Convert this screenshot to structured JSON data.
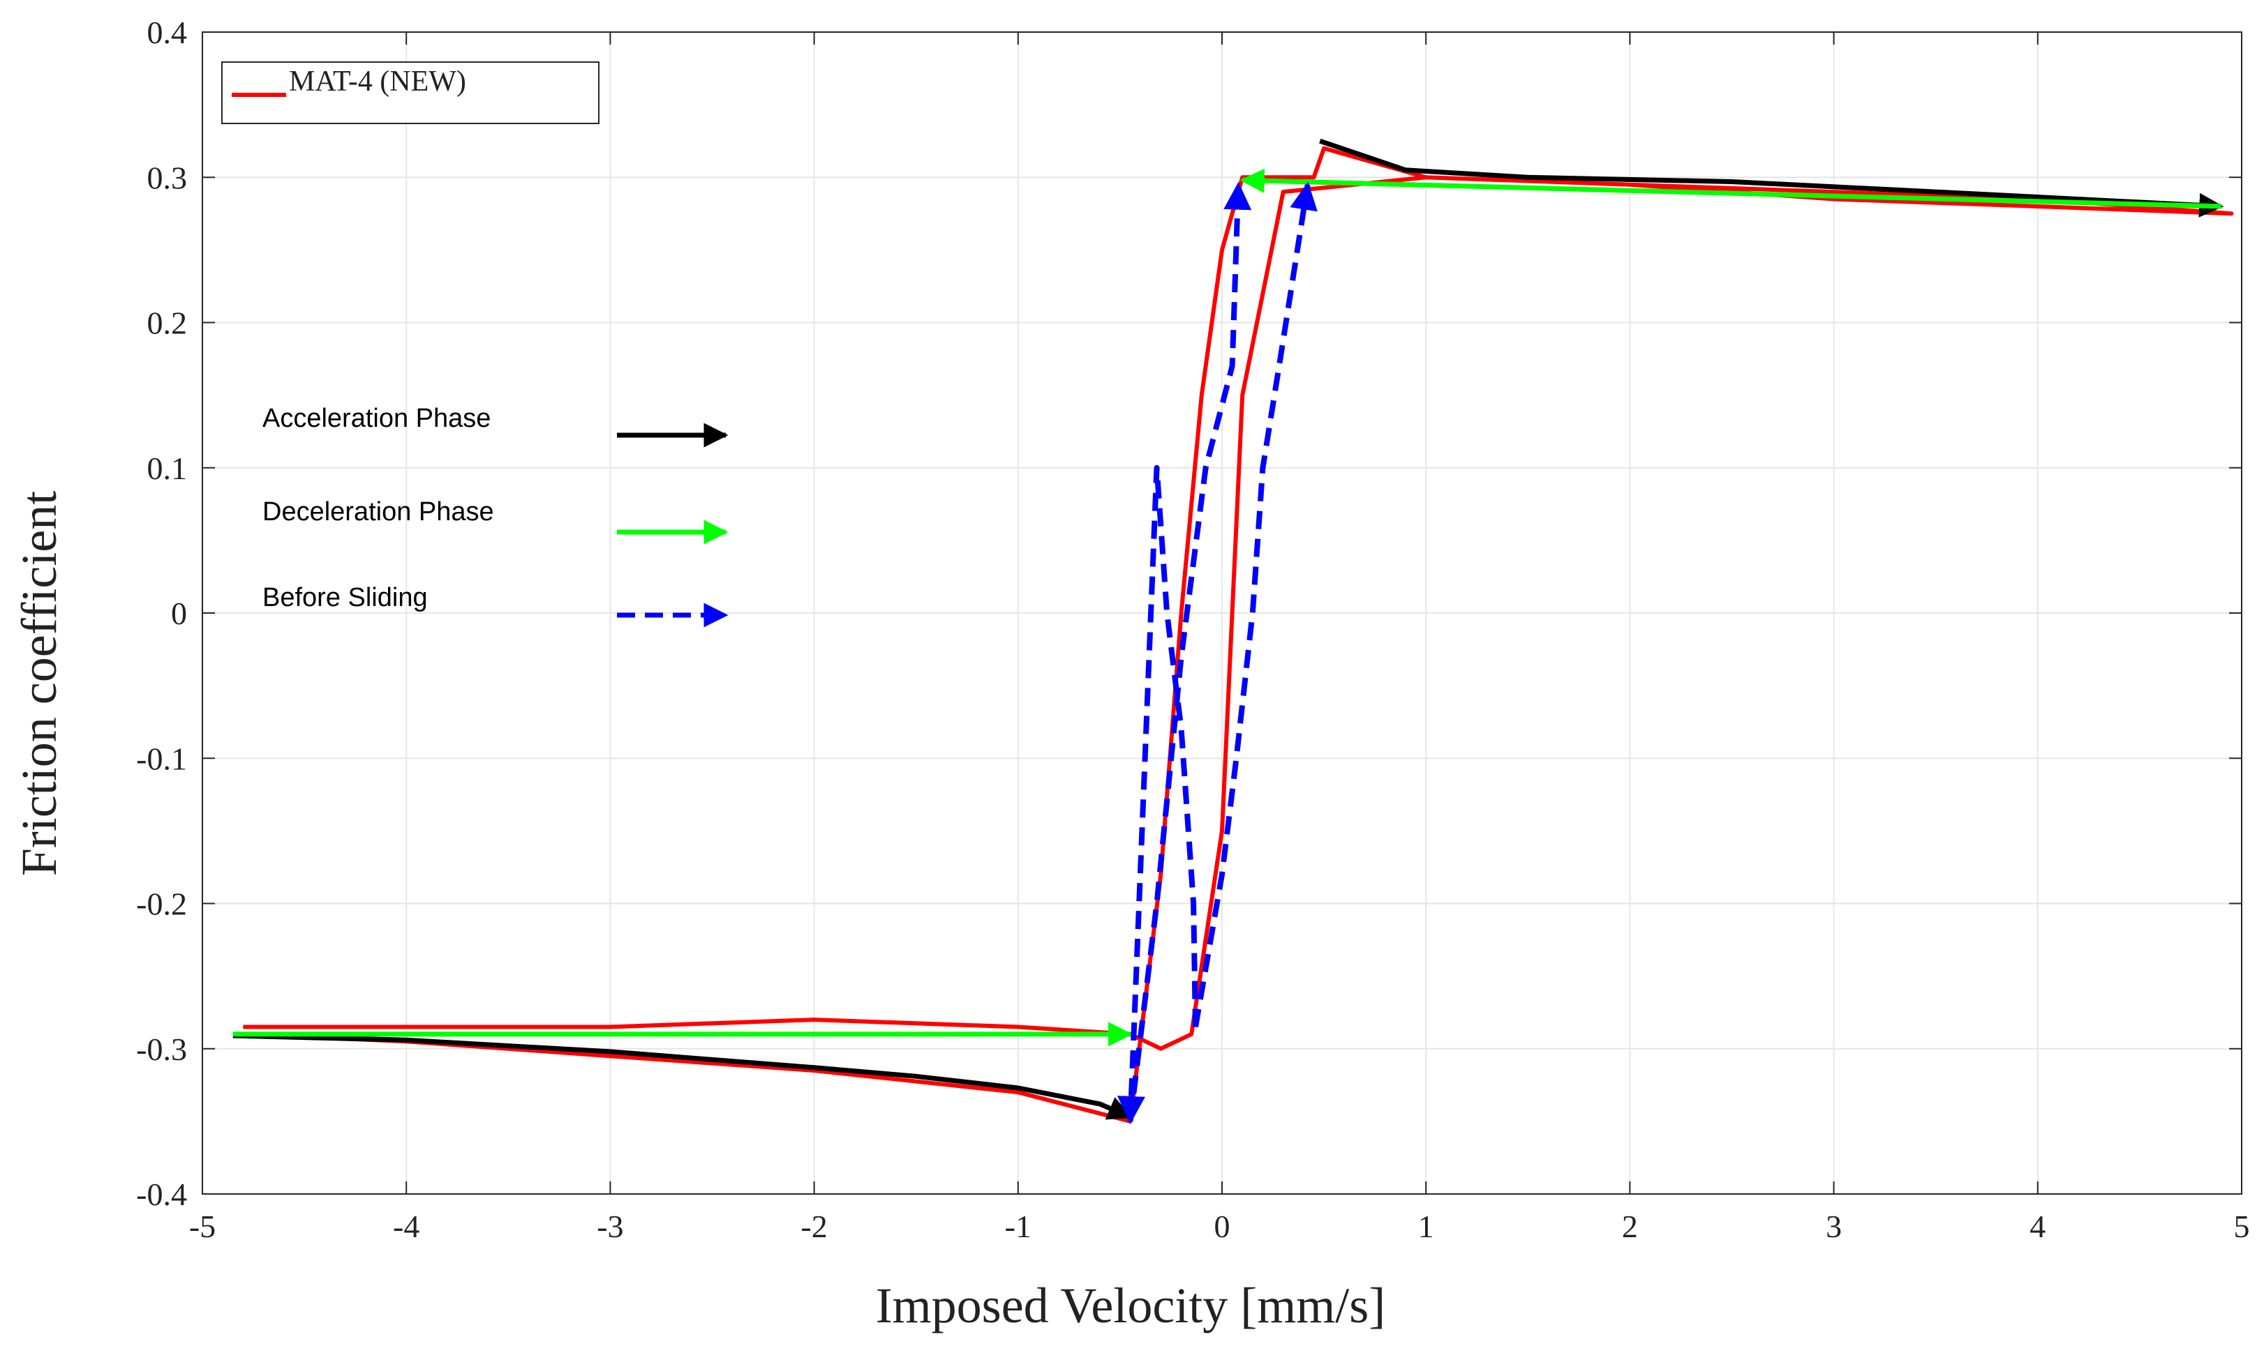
{
  "chart_data": {
    "type": "line",
    "title": "",
    "xlabel": "Imposed Velocity [mm/s]",
    "ylabel": "Friction coefficient",
    "xlim": [
      -5,
      5
    ],
    "ylim": [
      -0.4,
      0.4
    ],
    "grid": true,
    "x_ticks": [
      -5,
      -4,
      -3,
      -2,
      -1,
      0,
      1,
      2,
      3,
      4,
      5
    ],
    "x_tick_labels": [
      "-5",
      "-4",
      "-3",
      "-2",
      "-1",
      "0",
      "1",
      "2",
      "3",
      "4",
      "5"
    ],
    "y_ticks": [
      0.4,
      0.3,
      0.2,
      0.1,
      0,
      -0.1,
      -0.2,
      -0.3,
      -0.4
    ],
    "y_tick_labels": [
      "0.4",
      "0.3",
      "0.2",
      "0.1",
      "0",
      "-0.1",
      "-0.2",
      "-0.3",
      "-0.4"
    ],
    "legend": {
      "location": "top-left",
      "entries": [
        {
          "label": "MAT-4 (NEW)",
          "color": "#ff0000"
        }
      ]
    },
    "series": [
      {
        "name": "MAT-4 (NEW)",
        "color": "#ff0000",
        "x": [
          -4.8,
          -4.0,
          -3.0,
          -2.0,
          -1.0,
          -0.45,
          -0.3,
          -0.2,
          -0.1,
          0.0,
          0.1,
          0.3,
          0.45,
          0.5,
          1.0,
          2.0,
          3.0,
          4.0,
          4.95,
          4.0,
          3.0,
          2.0,
          1.0,
          0.3,
          0.1,
          0.0,
          -0.15,
          -0.3,
          -0.45,
          -1.0,
          -2.0,
          -3.0,
          -4.0,
          -4.8
        ],
        "y": [
          -0.29,
          -0.295,
          -0.305,
          -0.315,
          -0.33,
          -0.35,
          -0.18,
          0.0,
          0.15,
          0.25,
          0.3,
          0.3,
          0.3,
          0.32,
          0.3,
          0.295,
          0.285,
          0.28,
          0.275,
          0.285,
          0.29,
          0.295,
          0.3,
          0.29,
          0.15,
          -0.15,
          -0.29,
          -0.3,
          -0.29,
          -0.285,
          -0.28,
          -0.285,
          -0.285,
          -0.285
        ]
      },
      {
        "name": "Acceleration Phase",
        "color": "#000000",
        "style": "solid",
        "segments": [
          {
            "x": [
              -4.85,
              -4.0,
              -3.0,
              -2.0,
              -1.5,
              -1.0,
              -0.6,
              -0.45
            ],
            "y": [
              -0.291,
              -0.294,
              -0.302,
              -0.313,
              -0.319,
              -0.327,
              -0.338,
              -0.347
            ]
          },
          {
            "x": [
              0.48,
              0.9,
              1.5,
              2.5,
              3.5,
              4.9
            ],
            "y": [
              0.325,
              0.305,
              0.3,
              0.297,
              0.29,
              0.28
            ]
          }
        ]
      },
      {
        "name": "Deceleration Phase",
        "color": "#00ff00",
        "style": "solid",
        "segments": [
          {
            "x": [
              4.9,
              0.1
            ],
            "y": [
              0.28,
              0.298
            ]
          },
          {
            "x": [
              -4.85,
              -0.45
            ],
            "y": [
              -0.29,
              -0.29
            ]
          }
        ]
      },
      {
        "name": "Before Sliding",
        "color": "#0000ff",
        "style": "dashed",
        "segments": [
          {
            "x": [
              -0.13,
              -0.14,
              -0.2,
              -0.27,
              -0.32,
              -0.45
            ],
            "y": [
              -0.285,
              -0.2,
              -0.08,
              0.0,
              0.1,
              -0.35
            ]
          },
          {
            "x": [
              -0.45,
              -0.32,
              -0.2,
              -0.08,
              0.05,
              0.08
            ],
            "y": [
              -0.35,
              -0.2,
              -0.03,
              0.1,
              0.17,
              0.295
            ]
          },
          {
            "x": [
              -0.13,
              0.0,
              0.07,
              0.15,
              0.2,
              0.28,
              0.42
            ],
            "y": [
              -0.285,
              -0.18,
              -0.1,
              0.0,
              0.1,
              0.17,
              0.295
            ]
          }
        ]
      }
    ],
    "annotations": [
      {
        "label": "Acceleration Phase",
        "color": "#000000",
        "style": "solid"
      },
      {
        "label": "Deceleration Phase",
        "color": "#00ff00",
        "style": "solid"
      },
      {
        "label": "Before Sliding",
        "color": "#0000ff",
        "style": "dashed"
      }
    ]
  }
}
